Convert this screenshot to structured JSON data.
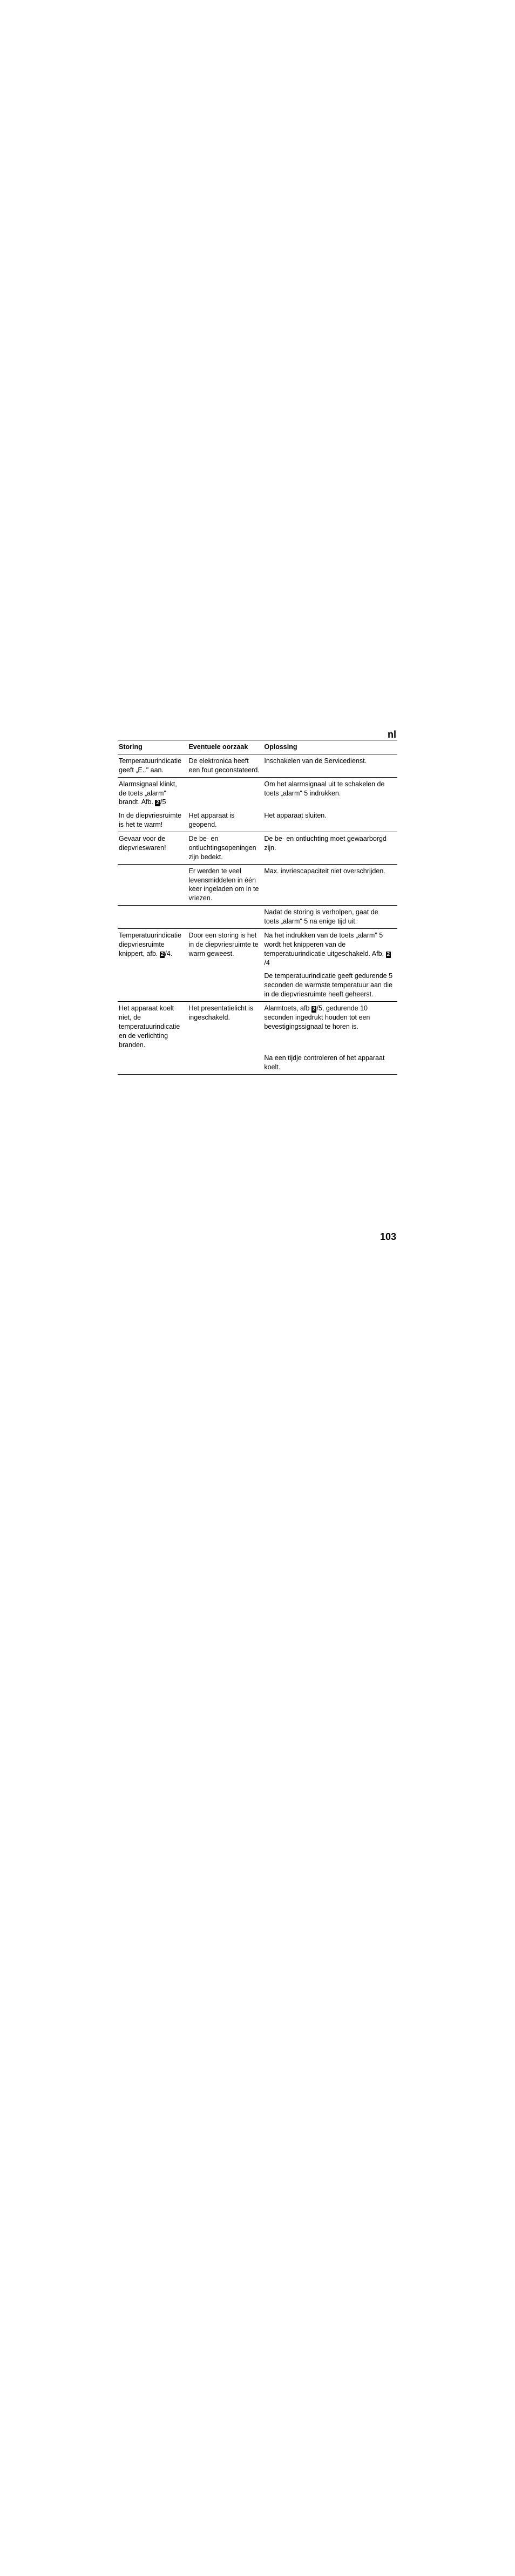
{
  "lang_label": "nl",
  "page_number": "103",
  "table": {
    "headers": [
      "Storing",
      "Eventuele oorzaak",
      "Oplossing"
    ],
    "rows": [
      {
        "cells": [
          "Temperatuurindicatie geeft „E..\" aan.",
          "De elektronica heeft een fout geconstateerd.",
          "Inschakelen van de Servicedienst."
        ],
        "border": true
      },
      {
        "cells": [
          "Alarmsignaal klinkt, de toets „alarm\" brandt. Afb. {AFB}/5",
          "",
          "Om het alarmsignaal uit te schakelen de toets „alarm\" 5 indrukken."
        ],
        "border": false,
        "afb_in": 0
      },
      {
        "cells": [
          "In de diepvriesruimte is het te warm!",
          "Het apparaat is geopend.",
          "Het apparaat sluiten."
        ],
        "border": true
      },
      {
        "cells": [
          "Gevaar voor de diepvrieswaren!",
          "De be- en ontluchtingsopeningen zijn bedekt.",
          "De be- en ontluchting moet gewaarborgd zijn."
        ],
        "border": false,
        "hairline": true
      },
      {
        "cells": [
          "",
          "Er werden te veel levensmiddelen in één keer ingeladen om in te vriezen.",
          "Max. invriescapaciteit niet overschrijden."
        ],
        "border": false,
        "hairline": true
      },
      {
        "cells": [
          "",
          "",
          "Nadat de storing is verholpen, gaat de toets „alarm\" 5 na enige tijd uit."
        ],
        "border": true
      },
      {
        "cells": [
          "Temperatuurindicatie diepvriesruimte knippert, afb. {AFB}/4.",
          "Door een storing is het in de diepvriesruimte te warm geweest.",
          "Na het indrukken van de toets „alarm\" 5 wordt het knipperen van de temperatuurindicatie uitgeschakeld. Afb. {AFB}/4"
        ],
        "border": false,
        "afb_in": 0,
        "afb_in2": 2
      },
      {
        "cells": [
          "",
          "",
          "De temperatuurindicatie geeft gedurende 5 seconden de warmste temperatuur aan die in de diepvriesruimte heeft geheerst."
        ],
        "border": true
      },
      {
        "cells": [
          "Het apparaat koelt niet, de temperatuurindicatie en de verlichting branden.",
          "Het presentatielicht is ingeschakeld.",
          "Alarmtoets, afb {AFB}/5, gedurende 10 seconden ingedrukt houden tot een bevestigingssignaal te horen is."
        ],
        "border": false,
        "afb_in2": 2
      },
      {
        "cells": [
          "",
          "",
          "Na een tijdje controleren of het apparaat koelt."
        ],
        "border": true
      }
    ]
  }
}
